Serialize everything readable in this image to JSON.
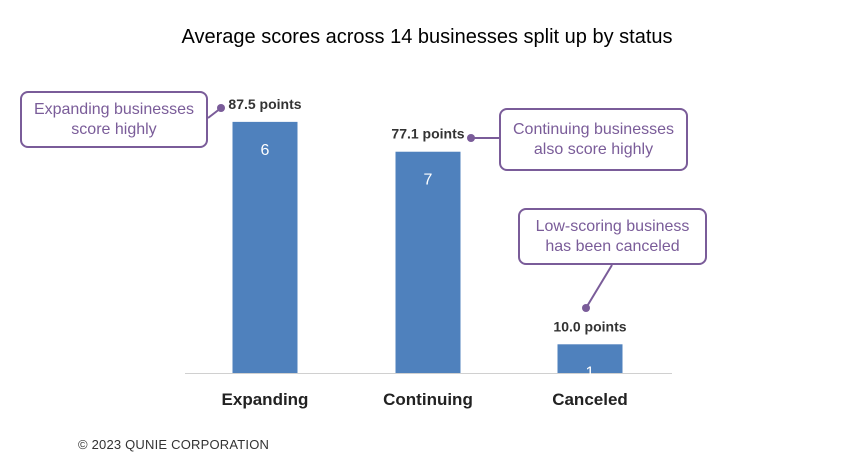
{
  "chart_data": {
    "type": "bar",
    "title": "Average scores across 14 businesses split up by status",
    "categories": [
      "Expanding",
      "Continuing",
      "Canceled"
    ],
    "values": [
      87.5,
      77.1,
      10.0
    ],
    "value_labels": [
      "87.5 points",
      "77.1 points",
      "10.0 points"
    ],
    "counts": [
      "6",
      "7",
      "1"
    ],
    "xlabel": "",
    "ylabel": "",
    "ylim": [
      0,
      100
    ],
    "grid": false,
    "legend": "none",
    "bar_color": "#4f81bd",
    "annotations": [
      {
        "category": "Expanding",
        "lines": [
          "Expanding businesses",
          "score highly"
        ]
      },
      {
        "category": "Continuing",
        "lines": [
          "Continuing businesses",
          "also score highly"
        ]
      },
      {
        "category": "Canceled",
        "lines": [
          "Low-scoring business",
          "has been canceled"
        ]
      }
    ],
    "annotation_color": "#7a5c99"
  },
  "footer": {
    "copyright": "© 2023 QUNIE CORPORATION"
  }
}
